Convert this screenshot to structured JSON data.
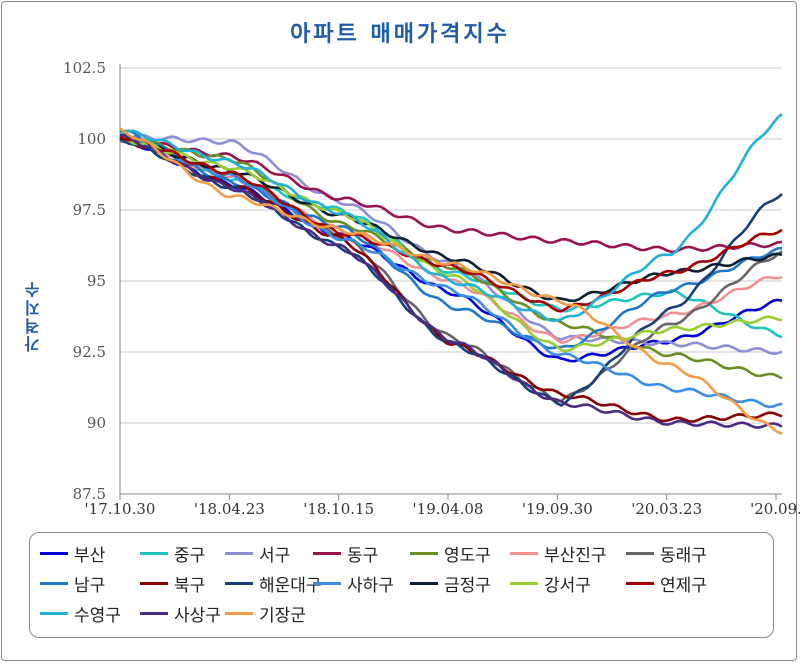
{
  "chart_data": {
    "type": "line",
    "title": "아파트 매매가격지수",
    "ylabel": "가격지수",
    "xlabel": "",
    "ylim": [
      87.5,
      102.5
    ],
    "yticks": [
      "87.5",
      "90",
      "92.5",
      "95",
      "97.5",
      "100",
      "102.5"
    ],
    "x_tick_labels": [
      "'17.10.30",
      "'18.04.23",
      "'18.10.15",
      "'19.04.08",
      "'19.09.30",
      "'20.03.23",
      "'20.09."
    ],
    "grid": true,
    "legend_position": "bottom",
    "x_keys": [
      0,
      25,
      50,
      75,
      100,
      125,
      150
    ],
    "series": [
      {
        "name": "부산",
        "color": "#0000dd",
        "values": [
          100,
          98.4,
          96.6,
          94.6,
          92.2,
          92.9,
          94.3
        ]
      },
      {
        "name": "중구",
        "color": "#1fc4c0",
        "values": [
          100.2,
          98.6,
          97.5,
          95.3,
          94.0,
          94.6,
          93.1
        ]
      },
      {
        "name": "서구",
        "color": "#8e8ed6",
        "values": [
          100.1,
          99.9,
          97.8,
          95.6,
          93.0,
          92.8,
          92.5
        ]
      },
      {
        "name": "동구",
        "color": "#99134f",
        "values": [
          100.0,
          99.4,
          97.9,
          96.8,
          96.4,
          96.1,
          96.3
        ]
      },
      {
        "name": "영도구",
        "color": "#6b8e23",
        "values": [
          100.0,
          99.3,
          97.0,
          95.5,
          93.5,
          92.4,
          91.6
        ]
      },
      {
        "name": "부산진구",
        "color": "#f29191",
        "values": [
          100.0,
          98.7,
          96.8,
          95.0,
          92.9,
          93.8,
          95.2
        ]
      },
      {
        "name": "동래구",
        "color": "#666666",
        "values": [
          100.0,
          98.7,
          96.6,
          93.0,
          90.8,
          93.5,
          96.0
        ]
      },
      {
        "name": "남구",
        "color": "#1f78c8",
        "values": [
          100.3,
          98.5,
          96.9,
          94.1,
          92.6,
          94.7,
          96.1
        ]
      },
      {
        "name": "북구",
        "color": "#8b0000",
        "values": [
          100.0,
          98.4,
          96.5,
          92.8,
          91.0,
          90.1,
          90.3
        ]
      },
      {
        "name": "해운대구",
        "color": "#173f7a",
        "values": [
          100.0,
          98.3,
          96.2,
          92.8,
          90.7,
          94.0,
          98.1
        ]
      },
      {
        "name": "사하구",
        "color": "#3a8ee6",
        "values": [
          100.1,
          98.7,
          96.5,
          94.7,
          92.4,
          91.2,
          90.6
        ]
      },
      {
        "name": "금정구",
        "color": "#0d1f33",
        "values": [
          100.0,
          98.9,
          97.3,
          95.8,
          94.3,
          95.3,
          95.9
        ]
      },
      {
        "name": "강서구",
        "color": "#9acd32",
        "values": [
          100.0,
          99.0,
          97.4,
          95.2,
          92.6,
          93.3,
          93.7
        ]
      },
      {
        "name": "연제구",
        "color": "#a50000",
        "values": [
          100.1,
          98.8,
          96.7,
          95.5,
          94.0,
          95.3,
          96.8
        ]
      },
      {
        "name": "수영구",
        "color": "#22b0d8",
        "values": [
          100.3,
          99.2,
          97.4,
          95.0,
          93.6,
          96.0,
          100.8
        ]
      },
      {
        "name": "사상구",
        "color": "#4b2c82",
        "values": [
          100.1,
          98.3,
          96.2,
          92.9,
          90.7,
          90.0,
          89.9
        ]
      },
      {
        "name": "기장군",
        "color": "#f39c45",
        "values": [
          100.3,
          98.0,
          96.8,
          95.6,
          94.3,
          92.0,
          89.7
        ]
      }
    ]
  }
}
